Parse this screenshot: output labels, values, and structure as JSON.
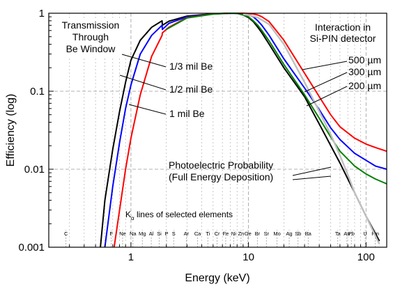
{
  "chart_data": {
    "type": "line",
    "xlabel": "Energy (keV)",
    "ylabel": "Efficiency (log)",
    "x_scale": "log",
    "y_scale": "log",
    "xlim": [
      0.2,
      150
    ],
    "ylim": [
      0.001,
      1
    ],
    "x_ticks": [
      {
        "v": 1,
        "label": "1"
      },
      {
        "v": 10,
        "label": "10"
      },
      {
        "v": 100,
        "label": "100"
      }
    ],
    "y_ticks": [
      {
        "v": 1,
        "label": "1"
      },
      {
        "v": 0.1,
        "label": "0.1"
      },
      {
        "v": 0.01,
        "label": "0.01"
      },
      {
        "v": 0.001,
        "label": "0.001"
      }
    ],
    "grid": true,
    "series": [
      {
        "name": "1/3 mil Be",
        "color": "#000000",
        "points": [
          [
            0.55,
            0.001
          ],
          [
            0.6,
            0.004
          ],
          [
            0.7,
            0.018
          ],
          [
            0.8,
            0.055
          ],
          [
            0.9,
            0.13
          ],
          [
            1.0,
            0.25
          ],
          [
            1.2,
            0.45
          ],
          [
            1.5,
            0.66
          ],
          [
            1.84,
            0.8
          ],
          [
            1.85,
            0.7
          ],
          [
            2.1,
            0.79
          ],
          [
            3,
            0.92
          ],
          [
            5,
            0.985
          ],
          [
            7,
            1.0
          ],
          [
            8,
            0.995
          ],
          [
            9,
            0.95
          ],
          [
            10,
            0.88
          ],
          [
            11,
            0.78
          ],
          [
            12,
            0.66
          ],
          [
            13,
            0.56
          ],
          [
            15,
            0.4
          ],
          [
            20,
            0.2
          ],
          [
            30,
            0.085
          ],
          [
            40,
            0.038
          ],
          [
            60,
            0.012
          ],
          [
            80,
            0.005
          ],
          [
            100,
            0.0025
          ],
          [
            120,
            0.0015
          ],
          [
            130,
            0.0012
          ]
        ]
      },
      {
        "name": "1/2 mil Be",
        "color": "#0000ff",
        "points": [
          [
            0.6,
            0.001
          ],
          [
            0.7,
            0.006
          ],
          [
            0.8,
            0.022
          ],
          [
            0.9,
            0.06
          ],
          [
            1.0,
            0.12
          ],
          [
            1.2,
            0.3
          ],
          [
            1.5,
            0.52
          ],
          [
            1.84,
            0.7
          ],
          [
            1.85,
            0.62
          ],
          [
            2.1,
            0.74
          ],
          [
            3,
            0.9
          ],
          [
            5,
            0.98
          ],
          [
            7,
            1.0
          ],
          [
            8,
            0.995
          ],
          [
            9,
            0.98
          ],
          [
            10,
            0.95
          ],
          [
            11,
            0.9
          ],
          [
            12,
            0.8
          ],
          [
            13,
            0.7
          ],
          [
            15,
            0.52
          ],
          [
            20,
            0.26
          ],
          [
            30,
            0.11
          ],
          [
            40,
            0.058
          ],
          [
            50,
            0.034
          ],
          [
            60,
            0.024
          ],
          [
            80,
            0.016
          ],
          [
            100,
            0.013
          ],
          [
            120,
            0.011
          ],
          [
            150,
            0.01
          ]
        ]
      },
      {
        "name": "1 mil Be",
        "color": "#ff0000",
        "points": [
          [
            0.72,
            0.001
          ],
          [
            0.8,
            0.003
          ],
          [
            0.9,
            0.01
          ],
          [
            1.0,
            0.025
          ],
          [
            1.2,
            0.09
          ],
          [
            1.5,
            0.28
          ],
          [
            1.84,
            0.52
          ],
          [
            1.85,
            0.56
          ],
          [
            2.1,
            0.66
          ],
          [
            3,
            0.88
          ],
          [
            5,
            0.98
          ],
          [
            7,
            1.0
          ],
          [
            8,
            1.0
          ],
          [
            9,
            1.0
          ],
          [
            10,
            0.99
          ],
          [
            11,
            0.98
          ],
          [
            12,
            0.95
          ],
          [
            13,
            0.9
          ],
          [
            15,
            0.78
          ],
          [
            20,
            0.45
          ],
          [
            30,
            0.17
          ],
          [
            40,
            0.085
          ],
          [
            50,
            0.05
          ],
          [
            60,
            0.035
          ],
          [
            80,
            0.025
          ],
          [
            100,
            0.021
          ],
          [
            120,
            0.019
          ],
          [
            150,
            0.017
          ]
        ]
      },
      {
        "name": "200 µm",
        "color": "#008000",
        "points": [
          [
            2,
            0.62
          ],
          [
            3,
            0.87
          ],
          [
            5,
            0.975
          ],
          [
            7,
            1.0
          ],
          [
            8,
            1.0
          ],
          [
            9,
            0.95
          ],
          [
            10,
            0.9
          ],
          [
            11,
            0.8
          ],
          [
            12,
            0.7
          ],
          [
            13,
            0.6
          ],
          [
            15,
            0.44
          ],
          [
            20,
            0.22
          ],
          [
            30,
            0.09
          ],
          [
            40,
            0.045
          ],
          [
            50,
            0.026
          ],
          [
            60,
            0.017
          ],
          [
            80,
            0.011
          ],
          [
            100,
            0.0087
          ],
          [
            120,
            0.0075
          ],
          [
            150,
            0.0065
          ]
        ]
      },
      {
        "name": "Photoelectric Probability",
        "color": "#bfbfbf",
        "points": [
          [
            9,
            0.97
          ],
          [
            10,
            0.95
          ],
          [
            12,
            0.88
          ],
          [
            15,
            0.72
          ],
          [
            20,
            0.4
          ],
          [
            30,
            0.13
          ],
          [
            40,
            0.055
          ],
          [
            50,
            0.028
          ],
          [
            60,
            0.015
          ],
          [
            70,
            0.0085
          ],
          [
            80,
            0.005
          ],
          [
            100,
            0.0025
          ],
          [
            120,
            0.0014
          ],
          [
            130,
            0.0011
          ]
        ]
      }
    ],
    "element_lines": {
      "title_main": "K",
      "title_sub": "α",
      "title_rest": " lines of selected elements",
      "elements": [
        {
          "name": "C",
          "e": 0.28
        },
        {
          "name": "F",
          "e": 0.68
        },
        {
          "name": "Ne",
          "e": 0.85
        },
        {
          "name": "Na",
          "e": 1.04
        },
        {
          "name": "Mg",
          "e": 1.25
        },
        {
          "name": "Al",
          "e": 1.49
        },
        {
          "name": "Si",
          "e": 1.74
        },
        {
          "name": "P",
          "e": 2.01
        },
        {
          "name": "S",
          "e": 2.31
        },
        {
          "name": "Ar",
          "e": 2.96
        },
        {
          "name": "Ca",
          "e": 3.69
        },
        {
          "name": "Ti",
          "e": 4.51
        },
        {
          "name": "Cr",
          "e": 5.41
        },
        {
          "name": "Fe",
          "e": 6.4
        },
        {
          "name": "Ni",
          "e": 7.48
        },
        {
          "name": "Zn",
          "e": 8.64
        },
        {
          "name": "Ge",
          "e": 9.89
        },
        {
          "name": "Br",
          "e": 11.9
        },
        {
          "name": "Sr",
          "e": 14.2
        },
        {
          "name": "Mo",
          "e": 17.5
        },
        {
          "name": "Ag",
          "e": 22.2
        },
        {
          "name": "Sb",
          "e": 26.4
        },
        {
          "name": "Ba",
          "e": 32.2
        },
        {
          "name": "Ta",
          "e": 57.5
        },
        {
          "name": "Au",
          "e": 68.8
        },
        {
          "name": "Pb",
          "e": 75.0
        },
        {
          "name": "U",
          "e": 98.4
        },
        {
          "name": "Fm",
          "e": 120
        }
      ]
    },
    "annotations": {
      "transmission": [
        "Transmission",
        "Through",
        "Be Window"
      ],
      "interaction": [
        "Interaction in",
        "Si-PIN detector"
      ],
      "photo": [
        "Photoelectric Probability",
        "(Full Energy Deposition)"
      ],
      "be_labels": [
        {
          "text": "1/3 mil Be",
          "series": "1/3 mil Be"
        },
        {
          "text": "1/2 mil Be",
          "series": "1/2 mil Be"
        },
        {
          "text": "1 mil Be",
          "series": "1 mil Be"
        }
      ],
      "thickness_labels": [
        {
          "text": "500 µm",
          "series": "1 mil Be"
        },
        {
          "text": "300 µm",
          "series": "1/2 mil Be"
        },
        {
          "text": "200 µm",
          "series": "200 µm"
        }
      ]
    }
  }
}
